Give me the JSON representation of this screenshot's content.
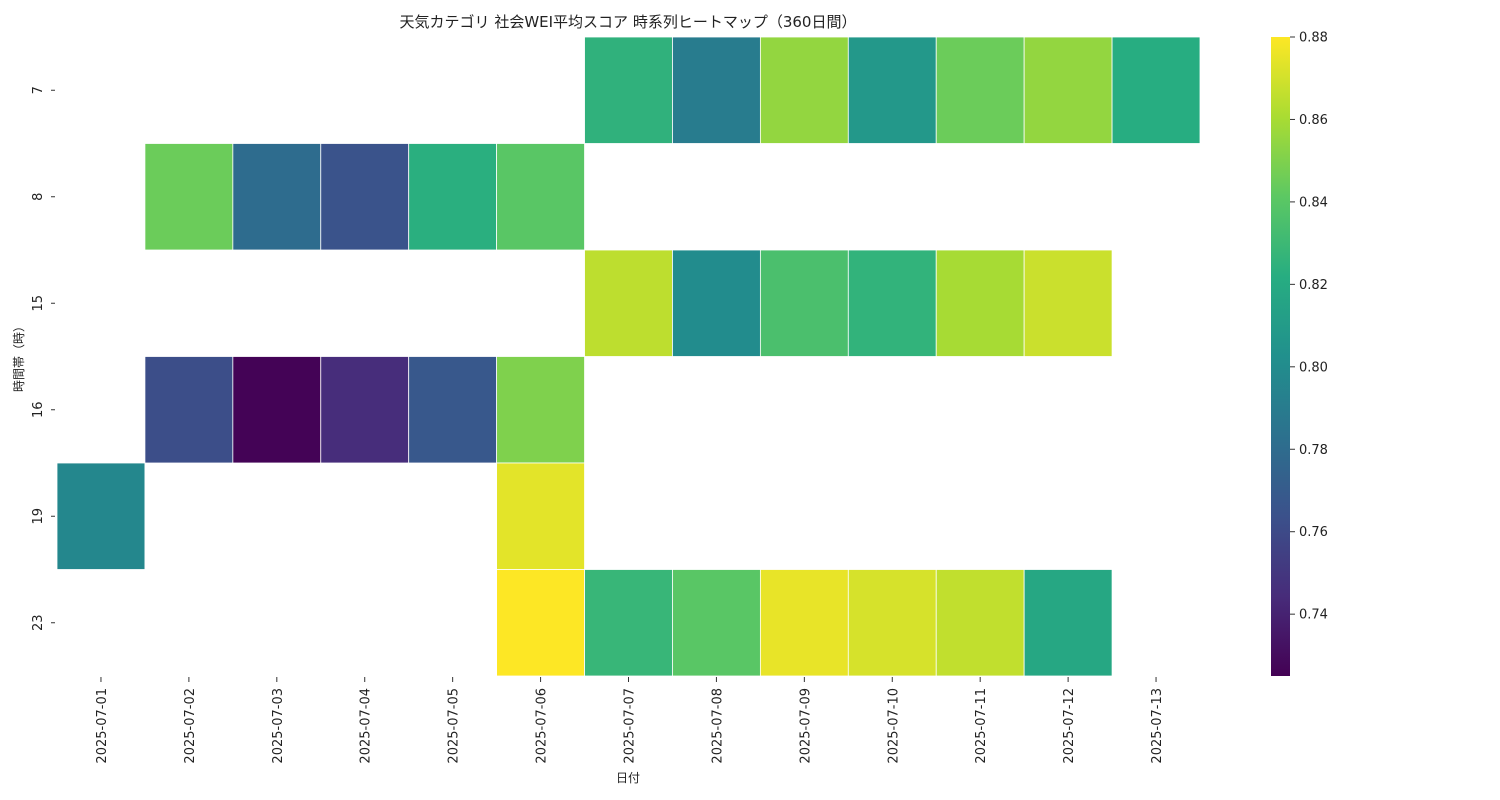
{
  "chart_data": {
    "type": "heatmap",
    "title": "天気カテゴリ 社会WEI平均スコア 時系列ヒートマップ（360日間）",
    "xlabel": "日付",
    "ylabel": "時間帯（時）",
    "x": [
      "2025-07-01",
      "2025-07-02",
      "2025-07-03",
      "2025-07-04",
      "2025-07-05",
      "2025-07-06",
      "2025-07-07",
      "2025-07-08",
      "2025-07-09",
      "2025-07-10",
      "2025-07-11",
      "2025-07-12",
      "2025-07-13"
    ],
    "y": [
      "7",
      "8",
      "15",
      "16",
      "19",
      "23"
    ],
    "values": [
      [
        null,
        null,
        null,
        null,
        null,
        null,
        0.825,
        0.79,
        0.855,
        0.808,
        0.845,
        0.855,
        0.822
      ],
      [
        null,
        0.845,
        0.78,
        0.765,
        0.823,
        0.84,
        null,
        null,
        null,
        null,
        null,
        null,
        null
      ],
      [
        null,
        null,
        null,
        null,
        null,
        null,
        0.865,
        0.8,
        0.835,
        0.826,
        0.86,
        0.868,
        null
      ],
      [
        null,
        0.762,
        0.726,
        0.745,
        0.768,
        0.85,
        null,
        null,
        null,
        null,
        null,
        null,
        null
      ],
      [
        0.797,
        null,
        null,
        null,
        null,
        0.874,
        null,
        null,
        null,
        null,
        null,
        null,
        null
      ],
      [
        null,
        null,
        null,
        null,
        null,
        0.88,
        0.828,
        0.84,
        0.875,
        0.871,
        0.866,
        0.818,
        null
      ]
    ],
    "colormap": "viridis",
    "vmin": 0.725,
    "vmax": 0.88,
    "colorbar_ticks": [
      "0.74",
      "0.76",
      "0.78",
      "0.80",
      "0.82",
      "0.84",
      "0.86",
      "0.88"
    ]
  }
}
